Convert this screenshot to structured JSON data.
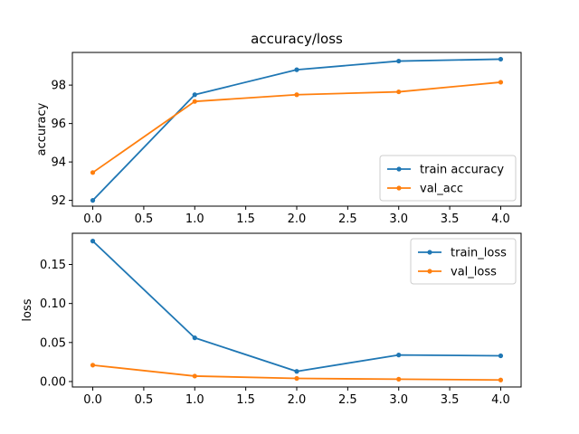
{
  "chart_data": [
    {
      "type": "line",
      "title": "accuracy/loss",
      "xlabel": "",
      "ylabel": "accuracy",
      "xlim": [
        -0.2,
        4.2
      ],
      "ylim": [
        91.7,
        99.7
      ],
      "xticks": [
        0,
        0.5,
        1,
        1.5,
        2,
        2.5,
        3,
        3.5,
        4
      ],
      "xtick_labels": [
        "0.0",
        "0.5",
        "1.0",
        "1.5",
        "2.0",
        "2.5",
        "3.0",
        "3.5",
        "4.0"
      ],
      "yticks": [
        92,
        94,
        96,
        98
      ],
      "ytick_labels": [
        "92",
        "94",
        "96",
        "98"
      ],
      "legend": "lower-right",
      "grid": false,
      "x": [
        0,
        1,
        2,
        3,
        4
      ],
      "series": [
        {
          "name": "train accuracy",
          "color": "#1f77b4",
          "values": [
            92.0,
            97.5,
            98.8,
            99.25,
            99.35
          ]
        },
        {
          "name": "val_acc",
          "color": "#ff7f0e",
          "values": [
            93.45,
            97.15,
            97.5,
            97.65,
            98.15
          ]
        }
      ]
    },
    {
      "type": "line",
      "title": "",
      "xlabel": "",
      "ylabel": "loss",
      "xlim": [
        -0.2,
        4.2
      ],
      "ylim": [
        -0.007,
        0.19
      ],
      "xticks": [
        0,
        0.5,
        1,
        1.5,
        2,
        2.5,
        3,
        3.5,
        4
      ],
      "xtick_labels": [
        "0.0",
        "0.5",
        "1.0",
        "1.5",
        "2.0",
        "2.5",
        "3.0",
        "3.5",
        "4.0"
      ],
      "yticks": [
        0,
        0.05,
        0.1,
        0.15
      ],
      "ytick_labels": [
        "0.00",
        "0.05",
        "0.10",
        "0.15"
      ],
      "legend": "upper-right",
      "grid": false,
      "x": [
        0,
        1,
        2,
        3,
        4
      ],
      "series": [
        {
          "name": "train_loss",
          "color": "#1f77b4",
          "values": [
            0.18,
            0.056,
            0.013,
            0.034,
            0.033
          ]
        },
        {
          "name": "val_loss",
          "color": "#ff7f0e",
          "values": [
            0.021,
            0.007,
            0.004,
            0.003,
            0.002
          ]
        }
      ]
    }
  ]
}
